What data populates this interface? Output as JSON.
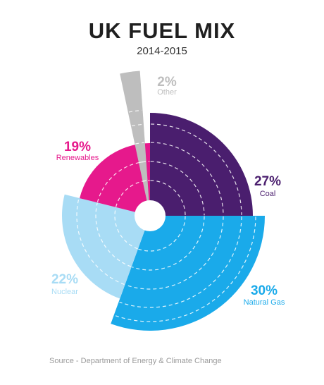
{
  "chart_data": {
    "type": "pie",
    "variant": "polar-area",
    "title": "UK FUEL MIX",
    "subtitle": "2014-2015",
    "slices": [
      {
        "name": "Coal",
        "value": 27,
        "label": "27%",
        "color": "#4a1e6e"
      },
      {
        "name": "Natural Gas",
        "value": 30,
        "label": "30%",
        "color": "#1aaaea"
      },
      {
        "name": "Nuclear",
        "value": 22,
        "label": "22%",
        "color": "#a8dcf5"
      },
      {
        "name": "Renewables",
        "value": 19,
        "label": "19%",
        "color": "#e6198c"
      },
      {
        "name": "Other",
        "value": 2,
        "label": "2%",
        "color": "#bebebe"
      }
    ],
    "source": "Source - Department of Energy & Climate Change",
    "grid": "dashed concentric rings"
  }
}
